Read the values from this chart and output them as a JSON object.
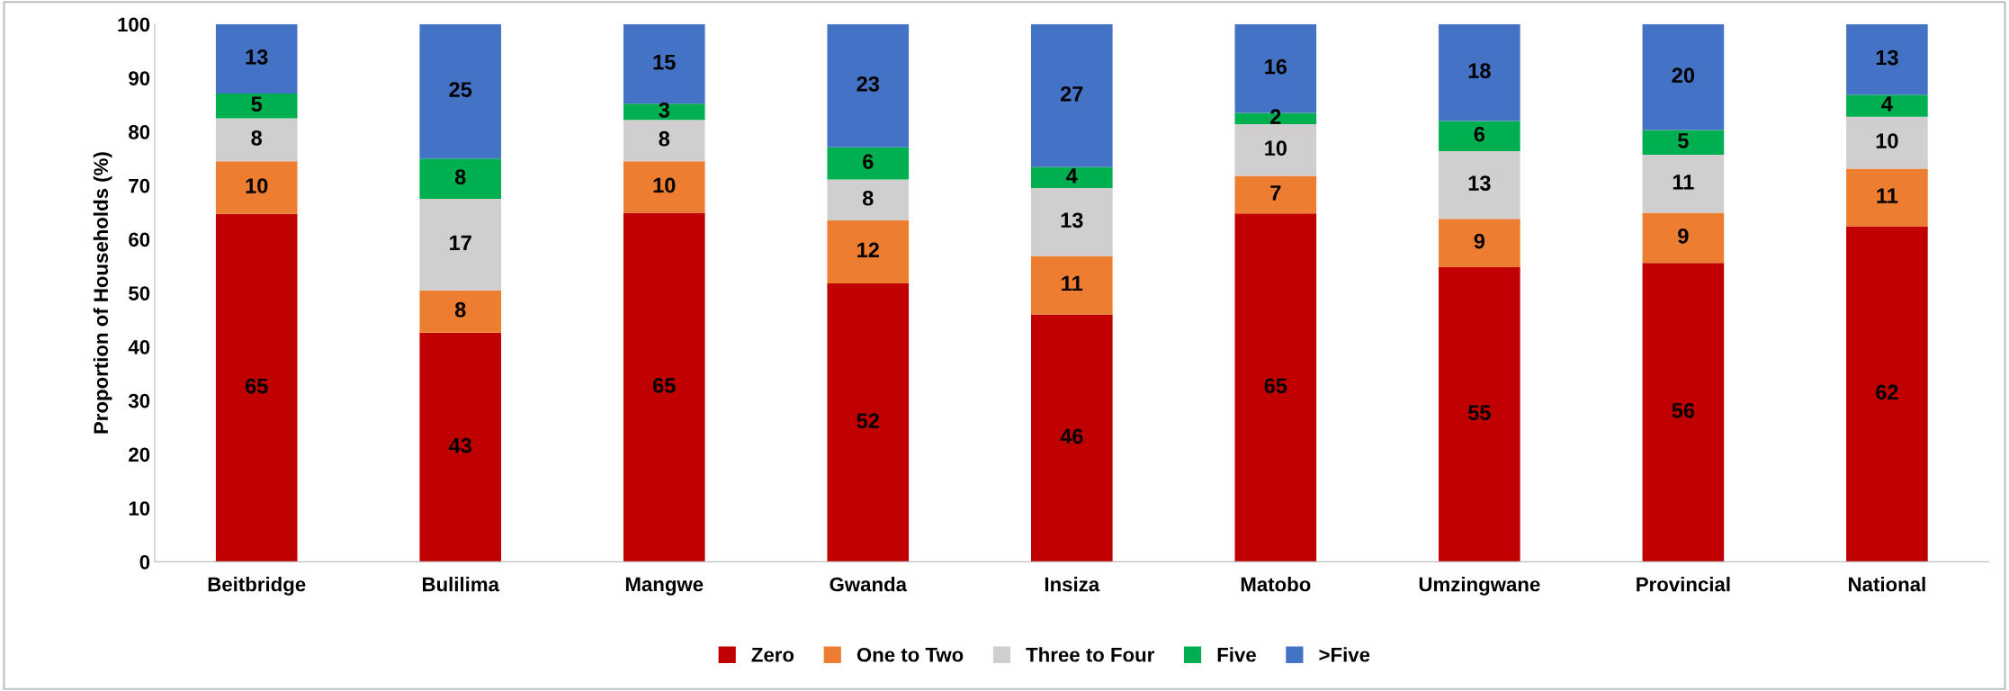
{
  "chart_data": {
    "type": "bar",
    "stacked": true,
    "ylabel": "Proportion of Households (%)",
    "categories": [
      "Beitbridge",
      "Bulilima",
      "Mangwe",
      "Gwanda",
      "Insiza",
      "Matobo",
      "Umzingwane",
      "Provincial",
      "National"
    ],
    "series": [
      {
        "name": "Zero",
        "color": "#c00000",
        "values": [
          64.7,
          42.6,
          64.9,
          51.8,
          46.0,
          64.8,
          54.8,
          55.6,
          62.4
        ],
        "value_labels": [
          "65",
          "43",
          "65",
          "52",
          "46",
          "65",
          "55",
          "56",
          "62"
        ]
      },
      {
        "name": "One to Two",
        "color": "#ed7d31",
        "values": [
          9.8,
          7.9,
          9.6,
          11.7,
          10.9,
          7.0,
          9.0,
          9.3,
          10.7
        ],
        "value_labels": [
          "10",
          "8",
          "10",
          "12",
          "11",
          "7",
          "9",
          "9",
          "11"
        ]
      },
      {
        "name": "Three to Four",
        "color": "#d0cece",
        "values": [
          8.0,
          17.0,
          7.7,
          7.6,
          12.6,
          9.6,
          12.6,
          10.8,
          9.7
        ],
        "value_labels": [
          "8",
          "17",
          "8",
          "8",
          "13",
          "10",
          "13",
          "11",
          "10"
        ]
      },
      {
        "name": "Five",
        "color": "#00b050",
        "values": [
          4.6,
          7.5,
          3.0,
          6.0,
          3.9,
          2.1,
          5.6,
          4.6,
          4.1
        ],
        "value_labels": [
          "5",
          "8",
          "3",
          "6",
          "4",
          "2",
          "6",
          "5",
          "4"
        ]
      },
      {
        "name": ">Five",
        "color": "#4472c4",
        "values": [
          12.9,
          25.0,
          14.8,
          22.9,
          26.6,
          16.5,
          18.0,
          19.7,
          13.1
        ],
        "value_labels": [
          "13",
          "25",
          "15",
          "23",
          "27",
          "16",
          "18",
          "20",
          "13"
        ]
      }
    ],
    "ylim": [
      0,
      100
    ],
    "yticks": [
      0,
      10,
      20,
      30,
      40,
      50,
      60,
      70,
      80,
      90,
      100
    ],
    "grid": false,
    "legend": "bottom"
  }
}
